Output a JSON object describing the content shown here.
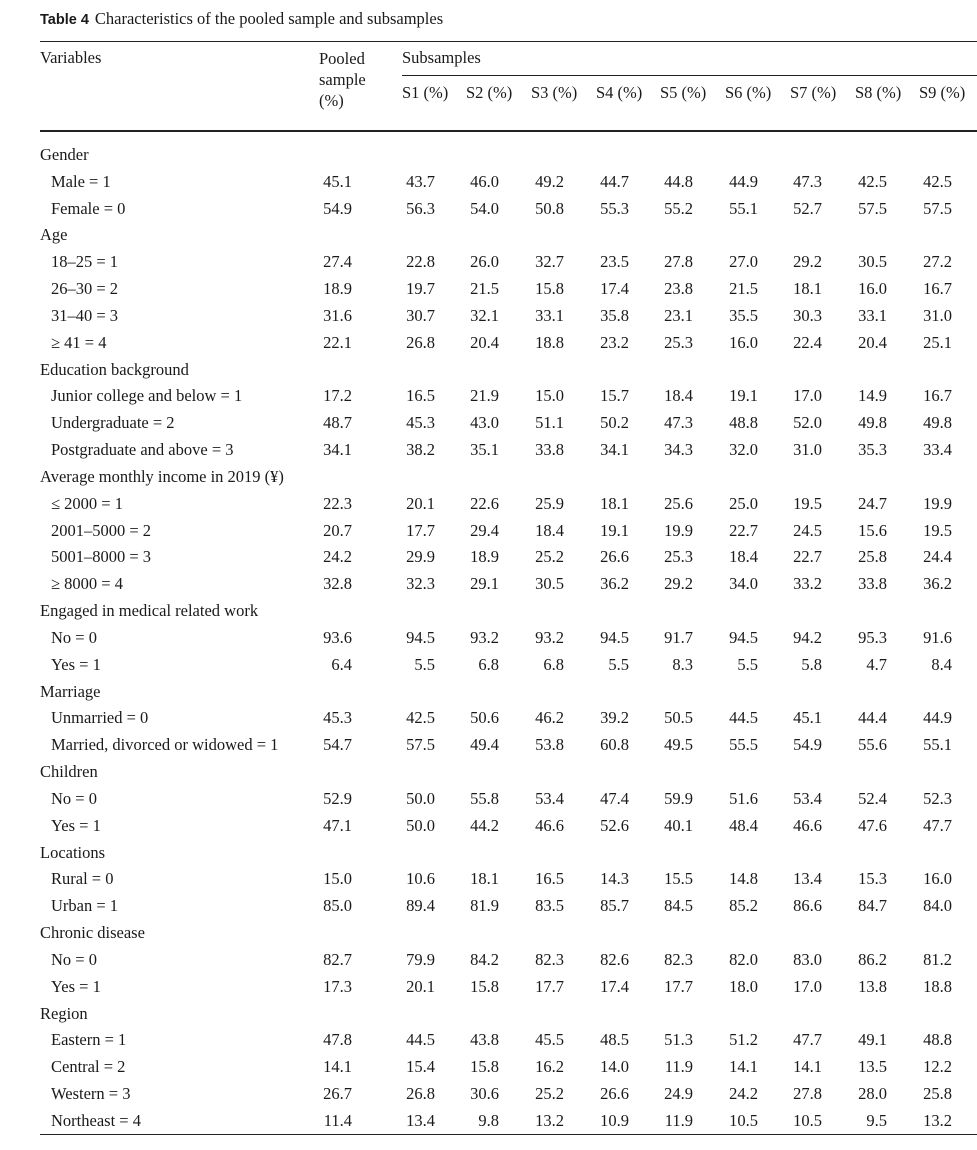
{
  "caption": {
    "label": "Table 4",
    "text": "Characteristics of the pooled sample and subsamples"
  },
  "header": {
    "variables": "Variables",
    "pooled": [
      "Pooled",
      "sample",
      "(%)"
    ],
    "subsamples": "Subsamples",
    "columns": [
      "S1 (%)",
      "S2 (%)",
      "S3 (%)",
      "S4 (%)",
      "S5 (%)",
      "S6 (%)",
      "S7 (%)",
      "S8 (%)",
      "S9 (%)"
    ]
  },
  "rows": [
    {
      "label": "Gender",
      "group": true
    },
    {
      "label": "Male = 1",
      "values": [
        "45.1",
        "43.7",
        "46.0",
        "49.2",
        "44.7",
        "44.8",
        "44.9",
        "47.3",
        "42.5",
        "42.5"
      ]
    },
    {
      "label": "Female = 0",
      "values": [
        "54.9",
        "56.3",
        "54.0",
        "50.8",
        "55.3",
        "55.2",
        "55.1",
        "52.7",
        "57.5",
        "57.5"
      ]
    },
    {
      "label": "Age",
      "group": true
    },
    {
      "label": "18–25 = 1",
      "values": [
        "27.4",
        "22.8",
        "26.0",
        "32.7",
        "23.5",
        "27.8",
        "27.0",
        "29.2",
        "30.5",
        "27.2"
      ]
    },
    {
      "label": "26–30 = 2",
      "values": [
        "18.9",
        "19.7",
        "21.5",
        "15.8",
        "17.4",
        "23.8",
        "21.5",
        "18.1",
        "16.0",
        "16.7"
      ]
    },
    {
      "label": "31–40 = 3",
      "values": [
        "31.6",
        "30.7",
        "32.1",
        "33.1",
        "35.8",
        "23.1",
        "35.5",
        "30.3",
        "33.1",
        "31.0"
      ]
    },
    {
      "label": "≥ 41 = 4",
      "values": [
        "22.1",
        "26.8",
        "20.4",
        "18.8",
        "23.2",
        "25.3",
        "16.0",
        "22.4",
        "20.4",
        "25.1"
      ]
    },
    {
      "label": "Education background",
      "group": true
    },
    {
      "label": "Junior college and below = 1",
      "values": [
        "17.2",
        "16.5",
        "21.9",
        "15.0",
        "15.7",
        "18.4",
        "19.1",
        "17.0",
        "14.9",
        "16.7"
      ]
    },
    {
      "label": "Undergraduate = 2",
      "values": [
        "48.7",
        "45.3",
        "43.0",
        "51.1",
        "50.2",
        "47.3",
        "48.8",
        "52.0",
        "49.8",
        "49.8"
      ]
    },
    {
      "label": "Postgraduate and above = 3",
      "values": [
        "34.1",
        "38.2",
        "35.1",
        "33.8",
        "34.1",
        "34.3",
        "32.0",
        "31.0",
        "35.3",
        "33.4"
      ]
    },
    {
      "label": "Average monthly income in 2019 (¥)",
      "group": true
    },
    {
      "label": "≤ 2000 = 1",
      "values": [
        "22.3",
        "20.1",
        "22.6",
        "25.9",
        "18.1",
        "25.6",
        "25.0",
        "19.5",
        "24.7",
        "19.9"
      ]
    },
    {
      "label": "2001–5000 = 2",
      "values": [
        "20.7",
        "17.7",
        "29.4",
        "18.4",
        "19.1",
        "19.9",
        "22.7",
        "24.5",
        "15.6",
        "19.5"
      ]
    },
    {
      "label": "5001–8000 = 3",
      "values": [
        "24.2",
        "29.9",
        "18.9",
        "25.2",
        "26.6",
        "25.3",
        "18.4",
        "22.7",
        "25.8",
        "24.4"
      ]
    },
    {
      "label": "≥ 8000 = 4",
      "values": [
        "32.8",
        "32.3",
        "29.1",
        "30.5",
        "36.2",
        "29.2",
        "34.0",
        "33.2",
        "33.8",
        "36.2"
      ]
    },
    {
      "label": "Engaged in medical related work",
      "group": true
    },
    {
      "label": "No = 0",
      "values": [
        "93.6",
        "94.5",
        "93.2",
        "93.2",
        "94.5",
        "91.7",
        "94.5",
        "94.2",
        "95.3",
        "91.6"
      ]
    },
    {
      "label": "Yes = 1",
      "values": [
        "6.4",
        "5.5",
        "6.8",
        "6.8",
        "5.5",
        "8.3",
        "5.5",
        "5.8",
        "4.7",
        "8.4"
      ]
    },
    {
      "label": "Marriage",
      "group": true
    },
    {
      "label": "Unmarried = 0",
      "values": [
        "45.3",
        "42.5",
        "50.6",
        "46.2",
        "39.2",
        "50.5",
        "44.5",
        "45.1",
        "44.4",
        "44.9"
      ]
    },
    {
      "label": "Married, divorced or widowed = 1",
      "values": [
        "54.7",
        "57.5",
        "49.4",
        "53.8",
        "60.8",
        "49.5",
        "55.5",
        "54.9",
        "55.6",
        "55.1"
      ]
    },
    {
      "label": "Children",
      "group": true
    },
    {
      "label": "No = 0",
      "values": [
        "52.9",
        "50.0",
        "55.8",
        "53.4",
        "47.4",
        "59.9",
        "51.6",
        "53.4",
        "52.4",
        "52.3"
      ]
    },
    {
      "label": "Yes = 1",
      "values": [
        "47.1",
        "50.0",
        "44.2",
        "46.6",
        "52.6",
        "40.1",
        "48.4",
        "46.6",
        "47.6",
        "47.7"
      ]
    },
    {
      "label": "Locations",
      "group": true
    },
    {
      "label": "Rural = 0",
      "values": [
        "15.0",
        "10.6",
        "18.1",
        "16.5",
        "14.3",
        "15.5",
        "14.8",
        "13.4",
        "15.3",
        "16.0"
      ]
    },
    {
      "label": "Urban = 1",
      "values": [
        "85.0",
        "89.4",
        "81.9",
        "83.5",
        "85.7",
        "84.5",
        "85.2",
        "86.6",
        "84.7",
        "84.0"
      ]
    },
    {
      "label": "Chronic disease",
      "group": true
    },
    {
      "label": "No = 0",
      "values": [
        "82.7",
        "79.9",
        "84.2",
        "82.3",
        "82.6",
        "82.3",
        "82.0",
        "83.0",
        "86.2",
        "81.2"
      ]
    },
    {
      "label": "Yes = 1",
      "values": [
        "17.3",
        "20.1",
        "15.8",
        "17.7",
        "17.4",
        "17.7",
        "18.0",
        "17.0",
        "13.8",
        "18.8"
      ]
    },
    {
      "label": "Region",
      "group": true
    },
    {
      "label": "Eastern = 1",
      "values": [
        "47.8",
        "44.5",
        "43.8",
        "45.5",
        "48.5",
        "51.3",
        "51.2",
        "47.7",
        "49.1",
        "48.8"
      ]
    },
    {
      "label": "Central = 2",
      "values": [
        "14.1",
        "15.4",
        "15.8",
        "16.2",
        "14.0",
        "11.9",
        "14.1",
        "14.1",
        "13.5",
        "12.2"
      ]
    },
    {
      "label": "Western = 3",
      "values": [
        "26.7",
        "26.8",
        "30.6",
        "25.2",
        "26.6",
        "24.9",
        "24.2",
        "27.8",
        "28.0",
        "25.8"
      ]
    },
    {
      "label": "Northeast = 4",
      "values": [
        "11.4",
        "13.4",
        "9.8",
        "13.2",
        "10.9",
        "11.9",
        "10.5",
        "10.5",
        "9.5",
        "13.2"
      ]
    }
  ]
}
